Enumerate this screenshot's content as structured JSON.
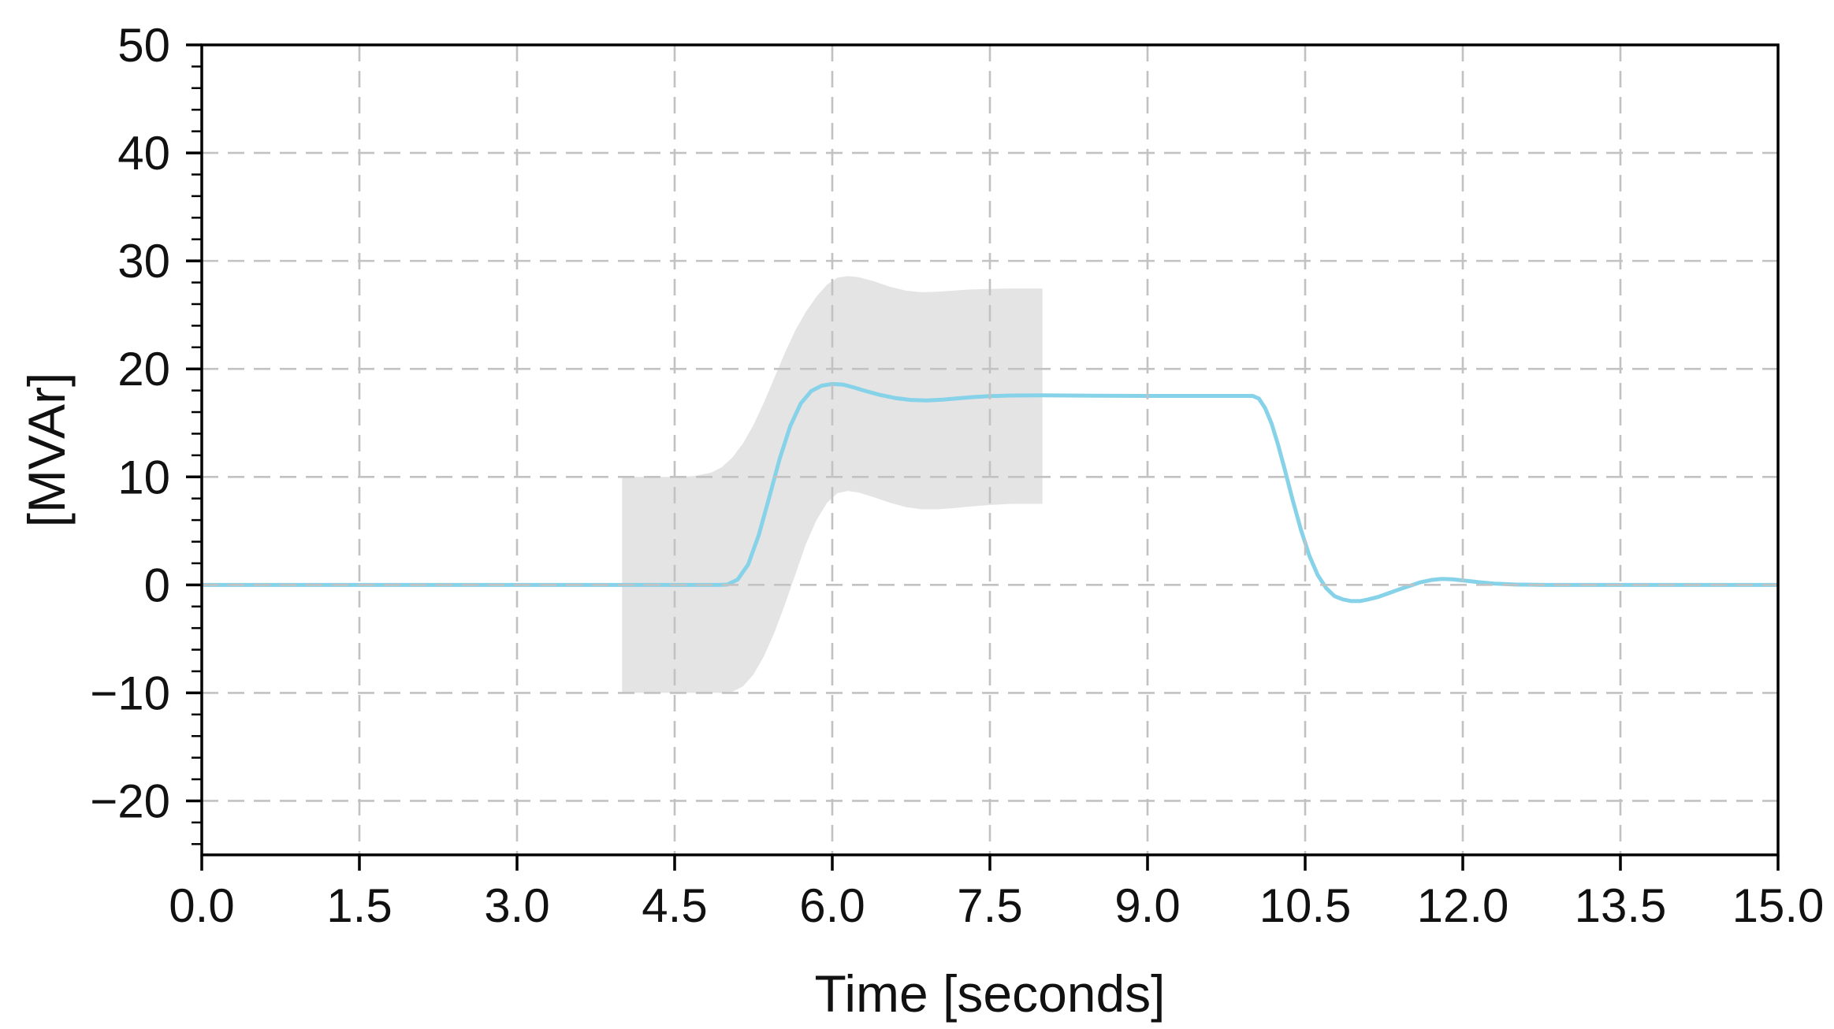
{
  "figure": {
    "background": "#ffffff"
  },
  "chart_data": {
    "type": "line",
    "title": "",
    "xlabel": "Time [seconds]",
    "ylabel": "[MVAr]",
    "xlim": [
      0,
      15
    ],
    "ylim": [
      -25,
      50
    ],
    "x_ticks": [
      0,
      1.5,
      3,
      4.5,
      6,
      7.5,
      9,
      10.5,
      12,
      13.5,
      15
    ],
    "x_tick_labels": [
      "0.0",
      "1.5",
      "3.0",
      "4.5",
      "6.0",
      "7.5",
      "9.0",
      "10.5",
      "12.0",
      "13.5",
      "15.0"
    ],
    "y_ticks": [
      -20,
      -10,
      0,
      10,
      20,
      30,
      40,
      50
    ],
    "y_tick_labels": [
      "−20",
      "−10",
      "0",
      "10",
      "20",
      "30",
      "40",
      "50"
    ],
    "y_minor_step": 2,
    "grid": {
      "show": true,
      "color": "#c2c2c2",
      "dash": [
        21,
        12
      ],
      "width": 2.6,
      "on_top": true
    },
    "axis_style": {
      "spine_color": "#000000",
      "spine_width": 3.5,
      "major_tick_len": 20,
      "minor_tick_len": 13
    },
    "series": [
      {
        "name": "uncertainty-band",
        "type": "band",
        "color": "#e4e4e4",
        "x_start": 4.0,
        "x_end": 8.0,
        "upper": [
          [
            4.0,
            10
          ],
          [
            4.55,
            10
          ],
          [
            4.7,
            10.1
          ],
          [
            4.85,
            10.4
          ],
          [
            4.95,
            10.9
          ],
          [
            5.05,
            11.8
          ],
          [
            5.15,
            13.1
          ],
          [
            5.25,
            14.8
          ],
          [
            5.35,
            16.9
          ],
          [
            5.45,
            19.2
          ],
          [
            5.55,
            21.5
          ],
          [
            5.65,
            23.6
          ],
          [
            5.75,
            25.3
          ],
          [
            5.85,
            26.7
          ],
          [
            5.95,
            27.8
          ],
          [
            6.05,
            28.45
          ],
          [
            6.15,
            28.6
          ],
          [
            6.25,
            28.5
          ],
          [
            6.4,
            28.1
          ],
          [
            6.55,
            27.6
          ],
          [
            6.7,
            27.25
          ],
          [
            6.85,
            27.1
          ],
          [
            7.0,
            27.15
          ],
          [
            7.15,
            27.25
          ],
          [
            7.3,
            27.35
          ],
          [
            7.5,
            27.4
          ],
          [
            7.7,
            27.45
          ],
          [
            8.0,
            27.45
          ]
        ],
        "lower": [
          [
            4.0,
            -10
          ],
          [
            4.95,
            -10
          ],
          [
            5.05,
            -9.9
          ],
          [
            5.15,
            -9.4
          ],
          [
            5.25,
            -8.3
          ],
          [
            5.35,
            -6.6
          ],
          [
            5.45,
            -4.4
          ],
          [
            5.55,
            -1.8
          ],
          [
            5.65,
            1.0
          ],
          [
            5.75,
            3.8
          ],
          [
            5.85,
            6.0
          ],
          [
            5.95,
            7.6
          ],
          [
            6.05,
            8.5
          ],
          [
            6.15,
            8.7
          ],
          [
            6.25,
            8.55
          ],
          [
            6.4,
            8.1
          ],
          [
            6.55,
            7.6
          ],
          [
            6.7,
            7.2
          ],
          [
            6.85,
            7.0
          ],
          [
            7.0,
            7.0
          ],
          [
            7.15,
            7.1
          ],
          [
            7.3,
            7.25
          ],
          [
            7.5,
            7.4
          ],
          [
            7.7,
            7.5
          ],
          [
            8.0,
            7.5
          ]
        ]
      },
      {
        "name": "reactive-power-response",
        "type": "line",
        "color": "#86d2e9",
        "width": 5,
        "points": [
          [
            0,
            0
          ],
          [
            4.9,
            0
          ],
          [
            5.0,
            0.02
          ],
          [
            5.1,
            0.5
          ],
          [
            5.2,
            1.9
          ],
          [
            5.3,
            4.6
          ],
          [
            5.4,
            8.1
          ],
          [
            5.5,
            11.7
          ],
          [
            5.6,
            14.7
          ],
          [
            5.7,
            16.8
          ],
          [
            5.8,
            17.95
          ],
          [
            5.9,
            18.45
          ],
          [
            6.0,
            18.6
          ],
          [
            6.1,
            18.55
          ],
          [
            6.2,
            18.3
          ],
          [
            6.3,
            18.0
          ],
          [
            6.45,
            17.6
          ],
          [
            6.6,
            17.3
          ],
          [
            6.75,
            17.12
          ],
          [
            6.9,
            17.08
          ],
          [
            7.05,
            17.15
          ],
          [
            7.2,
            17.28
          ],
          [
            7.35,
            17.4
          ],
          [
            7.5,
            17.48
          ],
          [
            7.7,
            17.53
          ],
          [
            8.0,
            17.55
          ],
          [
            8.5,
            17.52
          ],
          [
            9.0,
            17.5
          ],
          [
            10.0,
            17.5
          ],
          [
            10.06,
            17.25
          ],
          [
            10.12,
            16.35
          ],
          [
            10.18,
            14.95
          ],
          [
            10.24,
            13.05
          ],
          [
            10.3,
            10.9
          ],
          [
            10.38,
            7.9
          ],
          [
            10.46,
            5.1
          ],
          [
            10.54,
            2.7
          ],
          [
            10.62,
            0.9
          ],
          [
            10.7,
            -0.3
          ],
          [
            10.78,
            -1.05
          ],
          [
            10.86,
            -1.35
          ],
          [
            10.94,
            -1.5
          ],
          [
            11.02,
            -1.5
          ],
          [
            11.1,
            -1.35
          ],
          [
            11.2,
            -1.1
          ],
          [
            11.3,
            -0.75
          ],
          [
            11.4,
            -0.4
          ],
          [
            11.5,
            -0.08
          ],
          [
            11.6,
            0.25
          ],
          [
            11.7,
            0.45
          ],
          [
            11.8,
            0.55
          ],
          [
            11.9,
            0.52
          ],
          [
            12.0,
            0.42
          ],
          [
            12.15,
            0.25
          ],
          [
            12.3,
            0.12
          ],
          [
            12.5,
            0.03
          ],
          [
            12.8,
            0
          ],
          [
            15,
            0
          ]
        ]
      }
    ]
  }
}
